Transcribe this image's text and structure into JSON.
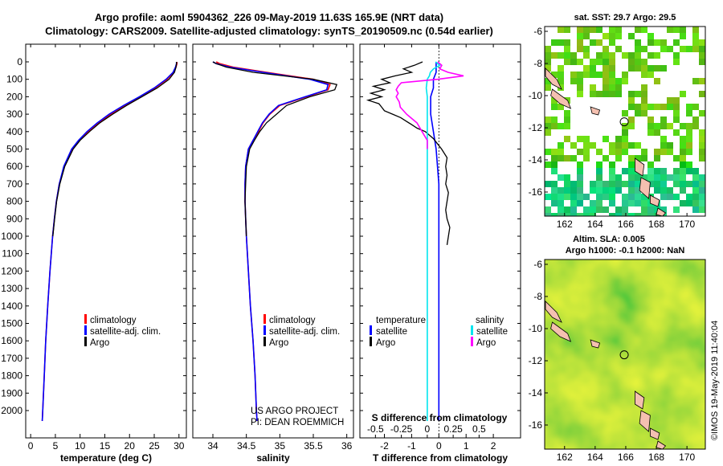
{
  "header": {
    "line1": "Argo profile: aoml 5904362_226 09-May-2019 11.63S 165.9E (NRT data)",
    "line2": "Climatology: CARS2009. Satellite-adjusted climatology: synTS_20190509.nc (0.54d earlier)"
  },
  "colors": {
    "climatology": "#ff0000",
    "satellite": "#0000ff",
    "argo": "#000000",
    "sal_satellite": "#00e5ee",
    "sal_argo": "#ff00ff",
    "land": "#f4c0b0"
  },
  "chart_data": [
    {
      "type": "line",
      "name": "temperature-profile",
      "xlabel": "temperature (deg C)",
      "ylabel": "",
      "xlim": [
        -1,
        31.5
      ],
      "ylim": [
        2080,
        0
      ],
      "xticks": [
        0,
        5,
        10,
        15,
        20,
        25,
        30
      ],
      "yticks": [
        0,
        100,
        200,
        300,
        400,
        500,
        600,
        700,
        800,
        900,
        1000,
        1100,
        1200,
        1300,
        1400,
        1500,
        1600,
        1700,
        1800,
        1900,
        2000
      ],
      "legend": [
        "climatology",
        "satellite-adj. clim.",
        "Argo"
      ],
      "series": [
        {
          "name": "climatology",
          "color": "#ff0000",
          "depth": [
            0,
            10,
            30,
            60,
            100,
            150,
            200,
            250,
            300,
            350,
            400,
            450,
            500,
            600,
            700,
            800,
            900,
            1000,
            1200,
            1400,
            1600,
            1800,
            2000,
            2060
          ],
          "values": [
            29.6,
            29.6,
            29.4,
            28.9,
            27.6,
            25.2,
            22.3,
            19.1,
            16.2,
            13.8,
            11.6,
            9.8,
            8.4,
            6.8,
            5.8,
            5.2,
            4.8,
            4.45,
            3.9,
            3.45,
            3.05,
            2.75,
            2.45,
            2.35
          ]
        },
        {
          "name": "satellite-adj. clim.",
          "color": "#0000ff",
          "depth": [
            0,
            10,
            30,
            60,
            100,
            150,
            200,
            250,
            300,
            350,
            400,
            450,
            500,
            600,
            700,
            800,
            900,
            1000,
            1200,
            1400,
            1600,
            1800,
            2000,
            2060
          ],
          "values": [
            29.5,
            29.5,
            29.3,
            28.8,
            27.4,
            25.0,
            22.0,
            18.8,
            15.9,
            13.5,
            11.4,
            9.7,
            8.3,
            6.7,
            5.8,
            5.2,
            4.8,
            4.45,
            3.9,
            3.45,
            3.05,
            2.75,
            2.45,
            2.35
          ]
        },
        {
          "name": "Argo",
          "color": "#000000",
          "depth": [
            0,
            10,
            30,
            60,
            100,
            150,
            200,
            250,
            300,
            350,
            400,
            450,
            500,
            600,
            700,
            800,
            900,
            1000
          ],
          "values": [
            29.5,
            29.5,
            29.4,
            29.1,
            28.0,
            25.6,
            22.5,
            19.4,
            16.6,
            14.0,
            11.9,
            10.0,
            8.6,
            6.9,
            5.9,
            5.25,
            4.85,
            4.5
          ]
        }
      ]
    },
    {
      "type": "line",
      "name": "salinity-profile",
      "xlabel": "salinity",
      "ylabel": "",
      "xlim": [
        33.7,
        36.1
      ],
      "ylim": [
        2080,
        0
      ],
      "xticks": [
        34,
        34.5,
        35,
        35.5,
        36
      ],
      "xtick_labels": [
        "34",
        "34.5",
        "35",
        "35.5",
        "36"
      ],
      "legend": [
        "climatology",
        "satellite-adj. clim.",
        "Argo"
      ],
      "annotations": [
        "US ARGO PROJECT",
        "PI: DEAN ROEMMICH"
      ],
      "series": [
        {
          "name": "climatology",
          "color": "#ff0000",
          "depth": [
            0,
            10,
            30,
            60,
            100,
            130,
            160,
            200,
            250,
            300,
            350,
            400,
            450,
            500,
            600,
            700,
            800,
            900,
            1000,
            1200,
            1400,
            1600,
            1800,
            2000,
            2060
          ],
          "values": [
            34.05,
            34.1,
            34.3,
            34.8,
            35.5,
            35.75,
            35.72,
            35.4,
            35.0,
            34.85,
            34.75,
            34.68,
            34.6,
            34.53,
            34.49,
            34.48,
            34.48,
            34.49,
            34.5,
            34.53,
            34.56,
            34.6,
            34.63,
            34.65,
            34.66
          ]
        },
        {
          "name": "satellite-adj. clim.",
          "color": "#0000ff",
          "depth": [
            0,
            10,
            30,
            60,
            100,
            130,
            160,
            200,
            250,
            300,
            350,
            400,
            450,
            500,
            600,
            700,
            800,
            900,
            1000,
            1200,
            1400,
            1600,
            1800,
            2000,
            2060
          ],
          "values": [
            34.0,
            34.05,
            34.25,
            34.75,
            35.45,
            35.72,
            35.7,
            35.38,
            34.98,
            34.84,
            34.74,
            34.67,
            34.6,
            34.53,
            34.49,
            34.48,
            34.48,
            34.49,
            34.5,
            34.53,
            34.56,
            34.6,
            34.63,
            34.65,
            34.66
          ]
        },
        {
          "name": "Argo",
          "color": "#000000",
          "depth": [
            0,
            10,
            30,
            60,
            100,
            130,
            160,
            200,
            250,
            300,
            350,
            400,
            450,
            500,
            600,
            700,
            800,
            900,
            1000
          ],
          "values": [
            34.0,
            34.05,
            34.2,
            34.6,
            35.5,
            35.85,
            35.82,
            35.45,
            35.1,
            34.95,
            34.8,
            34.7,
            34.62,
            34.55,
            34.5,
            34.49,
            34.48,
            34.49,
            34.5
          ]
        }
      ]
    },
    {
      "type": "line",
      "name": "difference-profile",
      "xlabel": "T difference from climatology",
      "x2label": "S difference from climatology",
      "xlim": [
        -2.9,
        3.0
      ],
      "ylim": [
        2080,
        0
      ],
      "xticks": [
        -2,
        -1,
        0,
        1,
        2
      ],
      "x2ticks": [
        -0.5,
        -0.25,
        0,
        0.25,
        0.5
      ],
      "x2tick_labels": [
        "-0.5",
        "-0.25",
        "0",
        "0.25",
        "0.5"
      ],
      "legend_left_title": "temperature",
      "legend_right_title": "salinity",
      "legend_left": [
        "satellite",
        "Argo"
      ],
      "legend_right": [
        "satellite",
        "Argo"
      ],
      "series": [
        {
          "name": "T satellite",
          "color": "#0000ff",
          "depth": [
            0,
            30,
            60,
            100,
            150,
            200,
            300,
            400,
            500,
            600,
            700,
            800,
            900,
            1000,
            1200,
            1400,
            1600,
            1800,
            2000,
            2060
          ],
          "values": [
            -0.1,
            -0.1,
            -0.1,
            -0.2,
            -0.2,
            -0.3,
            -0.3,
            -0.2,
            -0.1,
            -0.05,
            0,
            0,
            0,
            0,
            0,
            0,
            0,
            0,
            0,
            0
          ]
        },
        {
          "name": "T Argo",
          "color": "#000000",
          "depth": [
            0,
            20,
            40,
            60,
            80,
            100,
            120,
            140,
            160,
            180,
            200,
            220,
            240,
            260,
            280,
            300,
            320,
            340,
            360,
            380,
            400,
            420,
            440,
            460,
            480,
            500,
            550,
            600,
            650,
            700,
            750,
            800,
            850,
            900,
            950,
            1000,
            1050
          ],
          "values": [
            -0.6,
            -0.9,
            -1.3,
            -1.0,
            -1.6,
            -2.1,
            -1.8,
            -2.4,
            -2.0,
            -2.5,
            -2.1,
            -2.6,
            -2.2,
            -2.1,
            -2.0,
            -1.7,
            -1.4,
            -1.2,
            -1.0,
            -0.8,
            -0.5,
            -0.35,
            -0.2,
            -0.1,
            0,
            0.1,
            0.3,
            0.25,
            0.3,
            0.25,
            0.35,
            0.3,
            0.25,
            0.3,
            0.4,
            0.35,
            0.3
          ]
        },
        {
          "name": "S satellite",
          "color": "#00e5ee",
          "depth": [
            0,
            20,
            40,
            60,
            80,
            100,
            150,
            200,
            300,
            400,
            600,
            800,
            1000,
            1400,
            1800,
            2060
          ],
          "values": [
            0.08,
            0.12,
            0.06,
            0.03,
            0.02,
            0.0,
            -0.01,
            0.0,
            0.0,
            0.0,
            0.0,
            0.0,
            0.0,
            0.0,
            0.0,
            0.0
          ]
        },
        {
          "name": "S Argo",
          "color": "#ff00ff",
          "depth": [
            0,
            20,
            40,
            60,
            80,
            100,
            120,
            140,
            160,
            180,
            200,
            230,
            260,
            300,
            350,
            400,
            450,
            500
          ],
          "values": [
            0.1,
            0.14,
            0.12,
            0.2,
            0.35,
            0.1,
            -0.25,
            -0.28,
            -0.3,
            -0.28,
            -0.3,
            -0.27,
            -0.26,
            -0.2,
            -0.1,
            -0.05,
            0.0,
            0.0
          ]
        }
      ]
    },
    {
      "type": "heatmap",
      "name": "sst-map",
      "title": "sat. SST: 29.7 Argo: 29.5",
      "xticks": [
        162,
        164,
        166,
        168,
        170
      ],
      "yticks": [
        -6,
        -8,
        -10,
        -12,
        -14,
        -16
      ],
      "xlim": [
        160.7,
        171.2
      ],
      "ylim": [
        -17.5,
        -5.7
      ],
      "float_position": {
        "lon": 165.9,
        "lat": -11.63
      }
    },
    {
      "type": "heatmap",
      "name": "sla-map",
      "title_line1": "Altim. SLA: 0.005",
      "title_line2": "Argo h1000: -0.1 h2000: NaN",
      "xticks": [
        162,
        164,
        166,
        168,
        170
      ],
      "yticks": [
        -6,
        -8,
        -10,
        -12,
        -14,
        -16
      ],
      "xlim": [
        160.7,
        171.2
      ],
      "ylim": [
        -17.5,
        -5.7
      ],
      "float_position": {
        "lon": 165.9,
        "lat": -11.63
      }
    }
  ],
  "credit": "©IMOS 19-May-2019 11:40:04"
}
